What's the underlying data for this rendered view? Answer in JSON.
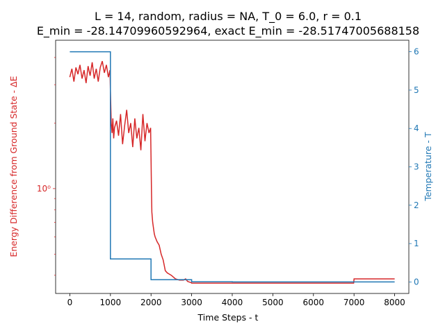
{
  "chart_data": {
    "type": "line",
    "title_line1": "L = 14, random, radius = NA, T_0 = 6.0, r = 0.1",
    "title_line2": "E_min = -28.14709960592964, exact E_min = -28.51747005688158",
    "xlabel": "Time Steps - t",
    "ylabel_left": "Energy Difference from Ground State - ΔE",
    "ylabel_right": "Temperature - T",
    "xlim": [
      -350,
      8350
    ],
    "x_ticks": [
      "0",
      "1000",
      "2000",
      "3000",
      "4000",
      "5000",
      "6000",
      "7000",
      "8000"
    ],
    "left_axis": {
      "scale": "log",
      "ylim": [
        0.33,
        4.8
      ],
      "major_tick_label": "10⁰"
    },
    "right_axis": {
      "scale": "linear",
      "ylim": [
        -0.3,
        6.3
      ],
      "ticks": [
        "0",
        "1",
        "2",
        "3",
        "4",
        "5",
        "6"
      ]
    },
    "colors": {
      "energy": "#d62728",
      "temperature": "#1f77b4"
    },
    "series": [
      {
        "axis": "left",
        "color": "#d62728",
        "x": [
          0,
          50,
          100,
          150,
          200,
          250,
          300,
          350,
          400,
          450,
          500,
          550,
          600,
          650,
          700,
          750,
          800,
          850,
          900,
          950,
          990,
          1000,
          1020,
          1040,
          1060,
          1080,
          1100,
          1150,
          1200,
          1250,
          1300,
          1350,
          1400,
          1450,
          1500,
          1550,
          1600,
          1650,
          1700,
          1750,
          1800,
          1850,
          1900,
          1950,
          1990,
          2000,
          2010,
          2020,
          2040,
          2060,
          2080,
          2100,
          2150,
          2200,
          2250,
          2300,
          2350,
          2400,
          2450,
          2500,
          2600,
          2700,
          2800,
          2850,
          2900,
          2950,
          2990,
          3000,
          3500,
          4000,
          5000,
          6000,
          6990,
          7000,
          8000
        ],
        "y": [
          3.25,
          3.55,
          3.1,
          3.6,
          3.35,
          3.7,
          3.2,
          3.5,
          3.05,
          3.65,
          3.3,
          3.8,
          3.2,
          3.55,
          3.1,
          3.6,
          3.85,
          3.4,
          3.7,
          3.25,
          3.5,
          2.8,
          2.0,
          1.8,
          2.1,
          1.7,
          1.9,
          2.05,
          1.75,
          2.2,
          1.6,
          1.95,
          2.3,
          1.8,
          2.0,
          1.55,
          2.1,
          1.7,
          1.9,
          1.5,
          2.2,
          1.65,
          2.0,
          1.8,
          1.9,
          1.4,
          1.0,
          0.78,
          0.7,
          0.66,
          0.62,
          0.6,
          0.57,
          0.55,
          0.5,
          0.47,
          0.42,
          0.41,
          0.405,
          0.4,
          0.385,
          0.38,
          0.38,
          0.385,
          0.375,
          0.372,
          0.37,
          0.368,
          0.368,
          0.368,
          0.368,
          0.368,
          0.368,
          0.385,
          0.385
        ]
      },
      {
        "axis": "right",
        "color": "#1f77b4",
        "x": [
          0,
          1000,
          1000,
          2000,
          2000,
          3000,
          3000,
          4000,
          4000,
          8000
        ],
        "y": [
          6.0,
          6.0,
          0.6,
          0.6,
          0.06,
          0.06,
          0.006,
          0.006,
          0.0006,
          0.0006
        ]
      }
    ]
  }
}
